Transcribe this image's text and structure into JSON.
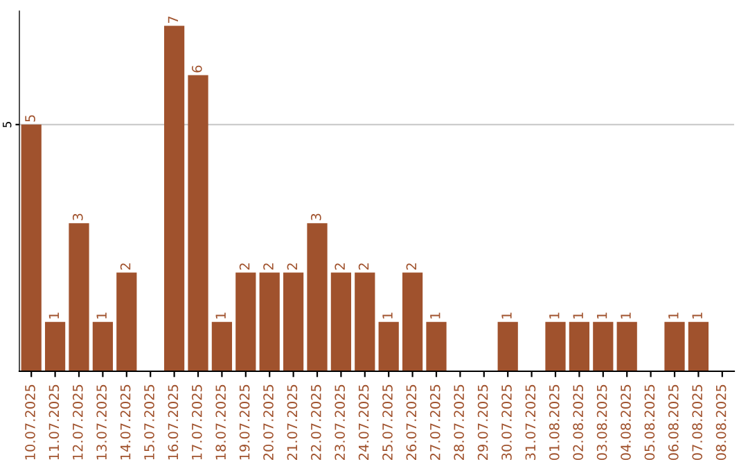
{
  "chart_data": {
    "type": "bar",
    "categories": [
      "10.07.2025",
      "11.07.2025",
      "12.07.2025",
      "13.07.2025",
      "14.07.2025",
      "15.07.2025",
      "16.07.2025",
      "17.07.2025",
      "18.07.2025",
      "19.07.2025",
      "20.07.2025",
      "21.07.2025",
      "22.07.2025",
      "23.07.2025",
      "24.07.2025",
      "25.07.2025",
      "26.07.2025",
      "27.07.2025",
      "28.07.2025",
      "29.07.2025",
      "30.07.2025",
      "31.07.2025",
      "01.08.2025",
      "02.08.2025",
      "03.08.2025",
      "04.08.2025",
      "05.08.2025",
      "06.08.2025",
      "07.08.2025",
      "08.08.2025"
    ],
    "values": [
      5,
      1,
      3,
      1,
      2,
      0,
      7,
      6,
      1,
      2,
      2,
      2,
      3,
      2,
      2,
      1,
      2,
      1,
      0,
      0,
      1,
      0,
      1,
      1,
      1,
      1,
      0,
      1,
      1,
      0
    ],
    "value_labels": [
      "5",
      "1",
      "3",
      "1",
      "2",
      null,
      "7",
      "6",
      "1",
      "2",
      "2",
      "2",
      "3",
      "2",
      "2",
      "1",
      "2",
      "1",
      null,
      null,
      "1",
      null,
      "1",
      "1",
      "1",
      "1",
      null,
      "1",
      "1",
      null
    ],
    "color": "#a0522d",
    "ylim": [
      0,
      7.3
    ],
    "yticks": [
      5
    ],
    "grid": "y",
    "legend": false
  }
}
